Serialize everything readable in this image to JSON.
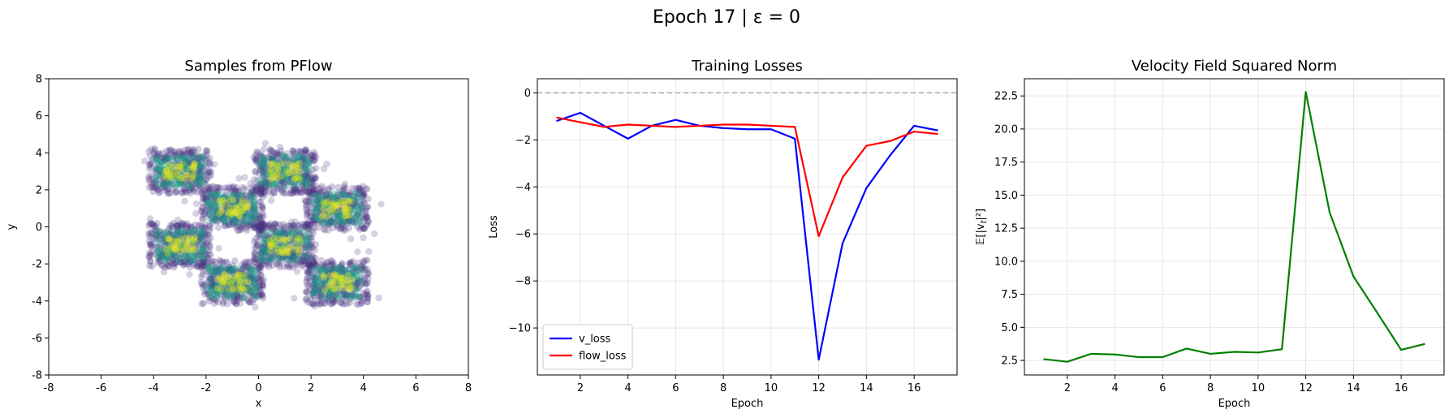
{
  "figure": {
    "suptitle": "Epoch 17 | ε = 0"
  },
  "chart_data": [
    {
      "type": "scatter",
      "title": "Samples from PFlow",
      "xlabel": "x",
      "ylabel": "y",
      "xlim": [
        -8,
        8
      ],
      "ylim": [
        -8,
        8
      ],
      "xticks": [
        -8,
        -6,
        -4,
        -2,
        0,
        2,
        4,
        6,
        8
      ],
      "yticks": [
        -8,
        -6,
        -4,
        -2,
        0,
        2,
        4,
        6,
        8
      ],
      "grid": false,
      "colormap": "viridis",
      "point_color": "#46307e",
      "clusters": [
        {
          "center": [
            -3,
            3
          ],
          "extent": [
            2,
            2
          ]
        },
        {
          "center": [
            1,
            3
          ],
          "extent": [
            2,
            2
          ]
        },
        {
          "center": [
            -1,
            1
          ],
          "extent": [
            2,
            2
          ]
        },
        {
          "center": [
            3,
            1
          ],
          "extent": [
            2,
            2
          ]
        },
        {
          "center": [
            -3,
            -1
          ],
          "extent": [
            2,
            2
          ]
        },
        {
          "center": [
            1,
            -1
          ],
          "extent": [
            2,
            2
          ]
        },
        {
          "center": [
            -1,
            -3
          ],
          "extent": [
            2,
            2
          ]
        },
        {
          "center": [
            3,
            -3
          ],
          "extent": [
            2,
            2
          ]
        }
      ]
    },
    {
      "type": "line",
      "title": "Training Losses",
      "xlabel": "Epoch",
      "ylabel": "Loss",
      "xlim": [
        0.2,
        17.8
      ],
      "ylim": [
        -12.0,
        0.6
      ],
      "xticks": [
        2,
        4,
        6,
        8,
        10,
        12,
        14,
        16
      ],
      "yticks": [
        0,
        -2,
        -4,
        -6,
        -8,
        -10
      ],
      "ytick_labels": [
        "0",
        "−2",
        "−4",
        "−6",
        "−8",
        "−10"
      ],
      "grid": true,
      "reference_line": {
        "y": 0,
        "color": "#aaaaaa",
        "style": "dashed"
      },
      "legend": {
        "position": "lower-left"
      },
      "x": [
        1,
        2,
        3,
        4,
        5,
        6,
        7,
        8,
        9,
        10,
        11,
        12,
        13,
        14,
        15,
        16,
        17
      ],
      "series": [
        {
          "name": "v_loss",
          "color": "#0000ff",
          "values": [
            -1.2,
            -0.85,
            -1.4,
            -1.95,
            -1.4,
            -1.15,
            -1.4,
            -1.5,
            -1.55,
            -1.55,
            -1.95,
            -11.35,
            -6.4,
            -4.05,
            -2.65,
            -1.4,
            -1.6
          ]
        },
        {
          "name": "flow_loss",
          "color": "#ff0000",
          "values": [
            -1.05,
            -1.25,
            -1.45,
            -1.35,
            -1.4,
            -1.45,
            -1.4,
            -1.35,
            -1.35,
            -1.4,
            -1.45,
            -6.1,
            -3.6,
            -2.25,
            -2.05,
            -1.65,
            -1.75
          ]
        }
      ]
    },
    {
      "type": "line",
      "title": "Velocity Field Squared Norm",
      "xlabel": "Epoch",
      "ylabel": "𝔼[|v",
      "ylabel_sub": "t",
      "ylabel_tail": "|²]",
      "xlim": [
        0.2,
        17.8
      ],
      "ylim": [
        1.4,
        23.8
      ],
      "xticks": [
        2,
        4,
        6,
        8,
        10,
        12,
        14,
        16
      ],
      "yticks": [
        2.5,
        5.0,
        7.5,
        10.0,
        12.5,
        15.0,
        17.5,
        20.0,
        22.5
      ],
      "ytick_labels": [
        "2.5",
        "5.0",
        "7.5",
        "10.0",
        "12.5",
        "15.0",
        "17.5",
        "20.0",
        "22.5"
      ],
      "grid": true,
      "x": [
        1,
        2,
        3,
        4,
        5,
        6,
        7,
        8,
        9,
        10,
        11,
        12,
        13,
        14,
        15,
        16,
        17
      ],
      "series": [
        {
          "name": "",
          "color": "#008000",
          "values": [
            2.6,
            2.4,
            3.0,
            2.95,
            2.75,
            2.75,
            3.4,
            3.0,
            3.15,
            3.1,
            3.35,
            22.8,
            13.7,
            8.85,
            6.1,
            3.3,
            3.75
          ]
        }
      ]
    }
  ]
}
